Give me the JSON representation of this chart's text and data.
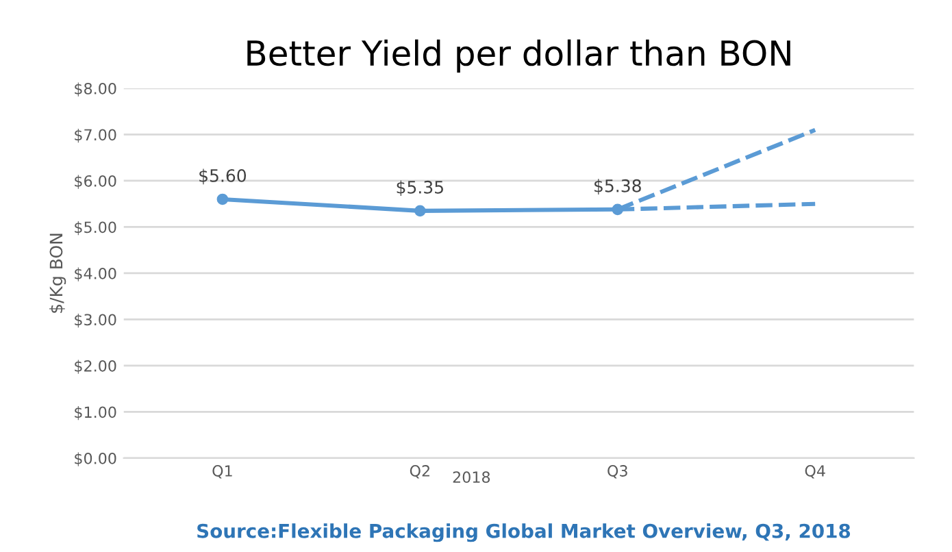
{
  "chart_data": {
    "type": "line",
    "title": "Better Yield per dollar than BON",
    "ylabel": "$/Kg BON",
    "xlabel": "2018",
    "categories": [
      "Q1",
      "Q2",
      "Q3",
      "Q4"
    ],
    "series": [
      {
        "color": "#5b9bd5",
        "values": [
          5.6,
          5.35,
          5.38,
          null
        ],
        "value_labels": [
          "$5.60",
          "$5.35",
          "$5.38",
          null
        ],
        "marker": "circle",
        "line_style": "solid"
      },
      {
        "color": "#5b9bd5",
        "values": [
          null,
          null,
          5.38,
          7.1
        ],
        "line_style": "dashed"
      },
      {
        "color": "#5b9bd5",
        "values": [
          null,
          null,
          5.38,
          5.5
        ],
        "line_style": "dashed"
      }
    ],
    "ylim": [
      0,
      8
    ],
    "yticks": [
      {
        "value": 0,
        "label": "$0.00"
      },
      {
        "value": 1,
        "label": "$1.00"
      },
      {
        "value": 2,
        "label": "$2.00"
      },
      {
        "value": 3,
        "label": "$3.00"
      },
      {
        "value": 4,
        "label": "$4.00"
      },
      {
        "value": 5,
        "label": "$5.00"
      },
      {
        "value": 6,
        "label": "$6.00"
      },
      {
        "value": 7,
        "label": "$7.00"
      },
      {
        "value": 8,
        "label": "$8.00"
      }
    ],
    "grid": "y",
    "legend": false,
    "annotations": [
      "Source:Flexible Packaging Global Market Overview, Q3, 2018"
    ]
  }
}
